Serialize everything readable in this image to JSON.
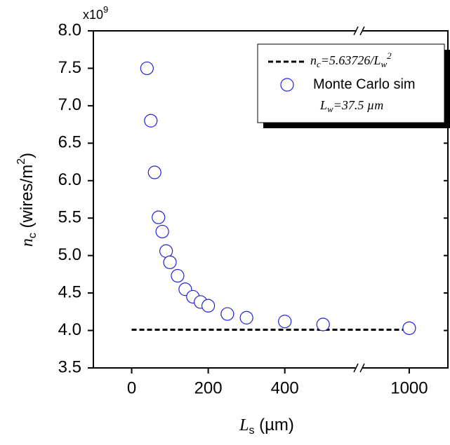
{
  "chart_data": {
    "type": "scatter",
    "multiplier": [
      "x10",
      "9"
    ],
    "xlabel": [
      "L",
      "s",
      " (µm)"
    ],
    "ylabel": [
      "n",
      "c",
      " (wires/m",
      "2",
      ")"
    ],
    "xlim": [
      -100,
      1101
    ],
    "xbreak": [
      595,
      870
    ],
    "ylim": [
      3.5,
      8.0
    ],
    "xticks": [
      0,
      200,
      400,
      1000
    ],
    "yticks": [
      3.5,
      {
        "value": 4.0,
        "label": "4.0"
      },
      4.5,
      {
        "value": 5.0,
        "label": "5.0"
      },
      5.5,
      {
        "value": 6.0,
        "label": "6.0"
      },
      6.5,
      {
        "value": 7.0,
        "label": "7.0"
      },
      7.5,
      {
        "value": 8.0,
        "label": "8.0"
      }
    ],
    "series": [
      {
        "name": [
          "n",
          "c",
          "=5.63726/L",
          "w",
          "2"
        ],
        "kind": "line",
        "color": "#000000",
        "x": [
          0,
          1000
        ],
        "values": [
          4.01,
          4.01
        ]
      },
      {
        "name": "Monte Carlo sim",
        "kind": "marker",
        "color": "#2222dd",
        "x": [
          40,
          50,
          60,
          70,
          80,
          90,
          100,
          120,
          140,
          160,
          180,
          200,
          250,
          300,
          400,
          500,
          1000
        ],
        "values": [
          7.5,
          6.8,
          6.11,
          5.51,
          5.32,
          5.06,
          4.91,
          4.73,
          4.55,
          4.45,
          4.38,
          4.33,
          4.22,
          4.17,
          4.12,
          4.08,
          4.03
        ]
      }
    ],
    "annotation": [
      "L",
      "w",
      "=37.5 µm"
    ]
  }
}
